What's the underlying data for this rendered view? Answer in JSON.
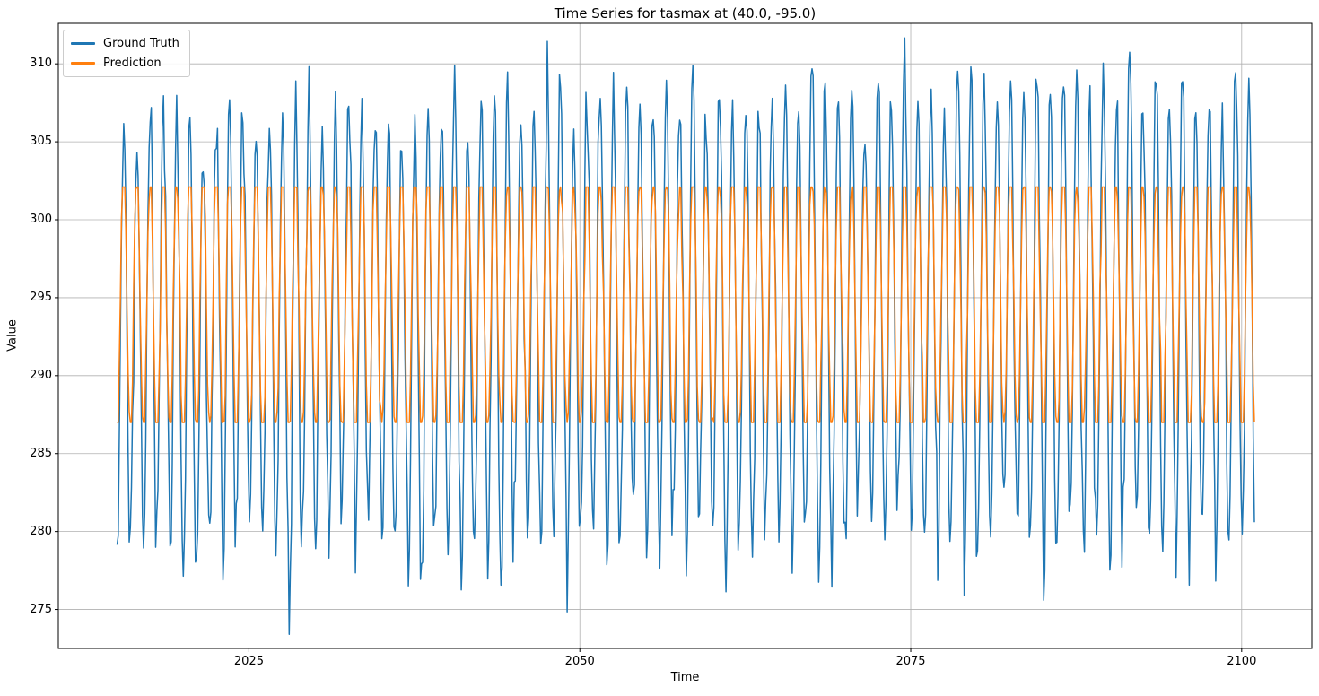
{
  "chart_data": {
    "type": "line",
    "title": "Time Series for tasmax at (40.0, -95.0)",
    "xlabel": "Time",
    "ylabel": "Value",
    "xlim": [
      2010.6,
      2105.3
    ],
    "ylim": [
      272.5,
      312.6
    ],
    "xticks": [
      2025,
      2050,
      2075,
      2100
    ],
    "yticks": [
      275,
      280,
      285,
      290,
      295,
      300,
      305,
      310
    ],
    "grid": true,
    "grid_color": "#b0b0b0",
    "spine_color": "#000000",
    "legend_position": "upper-left",
    "start_year": 2015,
    "n_years": 86,
    "samples_per_year": 12,
    "seed": 42,
    "series": [
      {
        "name": "Ground Truth",
        "color": "#1f77b4",
        "noise_sigma": 1.1,
        "phase_peak": 0.54,
        "yearly_peaks": [
          305.5,
          304.7,
          306.9,
          307.1,
          306.5,
          306.6,
          303.9,
          306.2,
          308.3,
          307.0,
          305.8,
          306.6,
          305.7,
          307.3,
          307.1,
          304.8,
          306.2,
          307.5,
          306.1,
          307.8,
          306.8,
          305.3,
          305.9,
          306.6,
          307.0,
          308.7,
          306.5,
          308.2,
          307.4,
          308.6,
          306.3,
          308.4,
          307.6,
          308.8,
          306.9,
          308.1,
          309.2,
          308.5,
          309.0,
          307.7,
          307.9,
          308.0,
          306.6,
          308.9,
          307.2,
          309.1,
          307.6,
          308.3,
          306.8,
          307.4,
          308.6,
          307.0,
          310.2,
          308.8,
          307.5,
          308.9,
          306.4,
          308.7,
          307.8,
          310.3,
          307.9,
          308.1,
          307.3,
          309.4,
          310.3,
          308.9,
          307.6,
          309.0,
          308.4,
          309.7,
          308.0,
          309.2,
          309.6,
          307.1,
          309.5,
          307.8,
          310.6,
          308.2,
          309.6,
          307.3,
          309.4,
          307.1,
          308.5,
          307.0,
          309.3,
          309.3
        ],
        "yearly_troughs": [
          277.6,
          280.1,
          279.5,
          281.2,
          279.0,
          275.8,
          278.6,
          280.9,
          276.9,
          281.5,
          280.2,
          279.8,
          278.3,
          274.8,
          280.6,
          281.0,
          278.9,
          282.3,
          279.3,
          281.8,
          278.7,
          280.4,
          275.9,
          277.4,
          281.1,
          279.6,
          276.8,
          280.8,
          278.1,
          275.0,
          281.3,
          279.2,
          277.9,
          280.5,
          277.2,
          279.9,
          281.6,
          278.4,
          280.0,
          282.1,
          277.8,
          279.4,
          281.9,
          278.0,
          280.7,
          279.1,
          277.5,
          280.3,
          278.8,
          281.4,
          279.7,
          278.2,
          280.9,
          276.5,
          278.5,
          279.0,
          284.0,
          281.2,
          279.8,
          282.5,
          279.2,
          280.1,
          277.0,
          281.7,
          276.3,
          279.5,
          280.8,
          282.0,
          278.6,
          280.4,
          276.8,
          279.9,
          281.1,
          278.3,
          280.6,
          276.7,
          282.2,
          279.4,
          279.0,
          280.2,
          279.1,
          278.0,
          280.9,
          277.3,
          279.6,
          279.8
        ]
      },
      {
        "name": "Prediction",
        "color": "#ff7f0e",
        "noise_sigma": 0.7,
        "phase_peak": 0.54,
        "mean": 294.6,
        "amplitude": 9.1,
        "clip": [
          287.0,
          302.1
        ]
      }
    ]
  }
}
